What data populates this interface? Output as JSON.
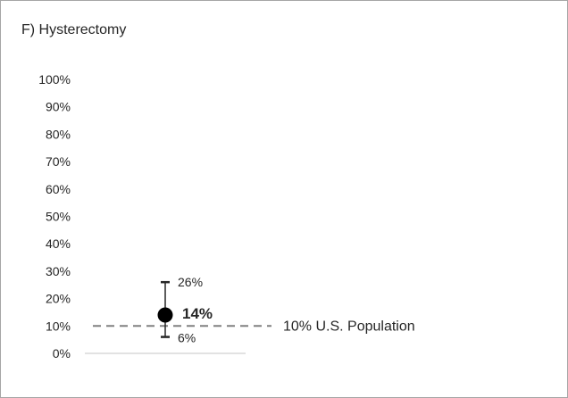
{
  "chart_data": {
    "type": "scatter",
    "title": "F) Hysterectomy",
    "xlabel": "",
    "ylabel": "",
    "ylim": [
      0,
      1.0
    ],
    "y_ticks": [
      "100%",
      "90%",
      "80%",
      "70%",
      "60%",
      "50%",
      "40%",
      "30%",
      "20%",
      "10%",
      "0%"
    ],
    "grid": false,
    "legend": "none",
    "point": {
      "value": 0.14,
      "label": "14%",
      "lower": 0.06,
      "lower_label": "6%",
      "upper": 0.26,
      "upper_label": "26%"
    },
    "reference_line": {
      "value": 0.1,
      "label": "10% U.S. Population",
      "style": "dashed"
    },
    "colors": {
      "point": "#000000",
      "error_bar": "#262626",
      "reference": "#808080",
      "axis": "#d9d9d9",
      "border": "#a6a6a6",
      "text": "#262626"
    }
  }
}
